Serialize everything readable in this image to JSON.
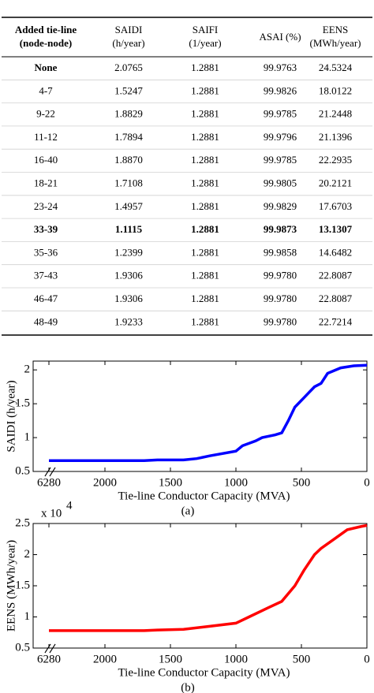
{
  "table": {
    "header": [
      [
        "Added tie-line",
        "(node-node)"
      ],
      [
        "SAIDI",
        "(h/year)"
      ],
      [
        "SAIFI",
        "(1/year)"
      ],
      [
        "ASAI (%)"
      ],
      [
        "EENS",
        "(MWh/year)"
      ]
    ],
    "rows": [
      [
        "None",
        "2.0765",
        "1.2881",
        "99.9763",
        "24.5324"
      ],
      [
        "4-7",
        "1.5247",
        "1.2881",
        "99.9826",
        "18.0122"
      ],
      [
        "9-22",
        "1.8829",
        "1.2881",
        "99.9785",
        "21.2448"
      ],
      [
        "11-12",
        "1.7894",
        "1.2881",
        "99.9796",
        "21.1396"
      ],
      [
        "16-40",
        "1.8870",
        "1.2881",
        "99.9785",
        "22.2935"
      ],
      [
        "18-21",
        "1.7108",
        "1.2881",
        "99.9805",
        "20.2121"
      ],
      [
        "23-24",
        "1.4957",
        "1.2881",
        "99.9829",
        "17.6703"
      ],
      [
        "33-39",
        "1.1115",
        "1.2881",
        "99.9873",
        "13.1307"
      ],
      [
        "35-36",
        "1.2399",
        "1.2881",
        "99.9858",
        "14.6482"
      ],
      [
        "37-43",
        "1.9306",
        "1.2881",
        "99.9780",
        "22.8087"
      ],
      [
        "46-47",
        "1.9306",
        "1.2881",
        "99.9780",
        "22.8087"
      ],
      [
        "48-49",
        "1.9233",
        "1.2881",
        "99.9780",
        "22.7214"
      ]
    ]
  },
  "chart_data": [
    {
      "type": "line",
      "caption": "(a)",
      "xlabel": "Tie-line Conductor Capacity (MVA)",
      "ylabel": "SAIDI (h/year)",
      "x": [
        6280,
        2000,
        1700,
        1600,
        1400,
        1300,
        1200,
        1000,
        950,
        850,
        800,
        700,
        650,
        600,
        550,
        450,
        400,
        350,
        300,
        200,
        100,
        0
      ],
      "series": [
        {
          "name": "SAIDI",
          "color": "#0000ff",
          "values": [
            0.66,
            0.66,
            0.66,
            0.67,
            0.67,
            0.69,
            0.73,
            0.8,
            0.88,
            0.95,
            1.0,
            1.04,
            1.07,
            1.25,
            1.45,
            1.65,
            1.75,
            1.8,
            1.95,
            2.03,
            2.06,
            2.07
          ]
        }
      ],
      "xlim": [
        6280,
        0
      ],
      "xticks": [
        6280,
        2000,
        1500,
        1000,
        500,
        0
      ],
      "ylim": [
        0.5,
        2.13
      ],
      "yticks": [
        0.5,
        1,
        1.5,
        2
      ]
    },
    {
      "type": "line",
      "caption": "(b)",
      "xlabel": "Tie-line Conductor Capacity (MVA)",
      "ylabel": "EENS (MWh/year)",
      "multiplier": "x 10",
      "multiplier_exp": "4",
      "x": [
        6280,
        2000,
        1700,
        1600,
        1400,
        1200,
        1000,
        900,
        750,
        650,
        550,
        480,
        400,
        350,
        250,
        150,
        50,
        0
      ],
      "series": [
        {
          "name": "EENS",
          "color": "#ff0000",
          "values": [
            0.78,
            0.78,
            0.78,
            0.79,
            0.8,
            0.85,
            0.9,
            1.0,
            1.15,
            1.25,
            1.5,
            1.75,
            2.0,
            2.1,
            2.25,
            2.4,
            2.45,
            2.47
          ]
        }
      ],
      "xlim": [
        6280,
        0
      ],
      "xticks": [
        6280,
        2000,
        1500,
        1000,
        500,
        0
      ],
      "ylim": [
        0.5,
        2.5
      ],
      "yticks": [
        0.5,
        1,
        1.5,
        2,
        2.5
      ]
    }
  ]
}
